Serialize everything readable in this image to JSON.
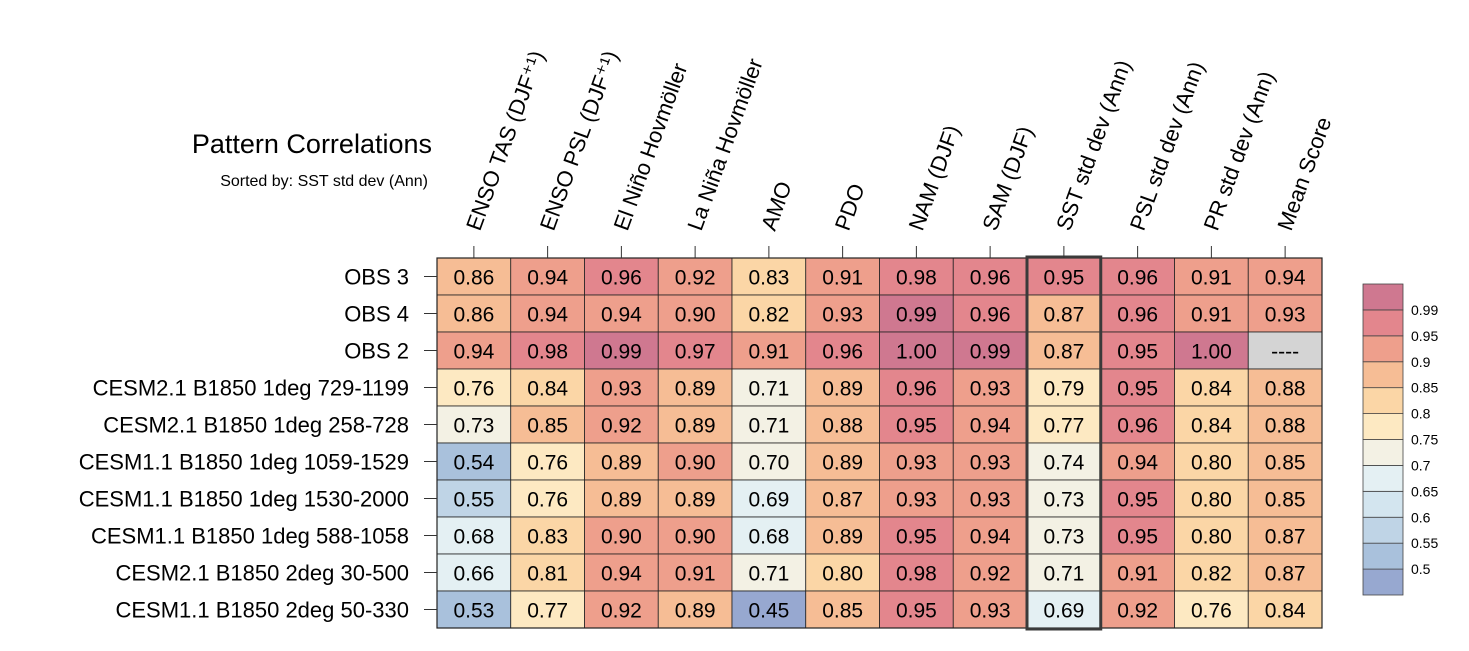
{
  "header": {
    "title": "Pattern Correlations",
    "subtitle": "Sorted by: SST std dev (Ann)"
  },
  "chart_data": {
    "type": "heatmap",
    "title": "Pattern Correlations",
    "subtitle": "Sorted by: SST std dev (Ann)",
    "sorted_by": "SST std dev (Ann)",
    "columns": [
      "ENSO TAS (DJF⁺¹)",
      "ENSO PSL (DJF⁺¹)",
      "El Niño Hovmöller",
      "La Niña Hovmöller",
      "AMO",
      "PDO",
      "NAM (DJF)",
      "SAM (DJF)",
      "SST std dev (Ann)",
      "PSL std dev (Ann)",
      "PR std dev (Ann)",
      "Mean Score"
    ],
    "rows": [
      "OBS 3",
      "OBS 4",
      "OBS 2",
      "CESM2.1 B1850 1deg 729-1199",
      "CESM2.1 B1850 1deg 258-728",
      "CESM1.1 B1850 1deg 1059-1529",
      "CESM1.1 B1850 1deg 1530-2000",
      "CESM1.1 B1850 1deg 588-1058",
      "CESM2.1 B1850 2deg 30-500",
      "CESM1.1 B1850 2deg 50-330"
    ],
    "values": [
      [
        "0.86",
        "0.94",
        "0.96",
        "0.92",
        "0.83",
        "0.91",
        "0.98",
        "0.96",
        "0.95",
        "0.96",
        "0.91",
        "0.94"
      ],
      [
        "0.86",
        "0.94",
        "0.94",
        "0.90",
        "0.82",
        "0.93",
        "0.99",
        "0.96",
        "0.87",
        "0.96",
        "0.91",
        "0.93"
      ],
      [
        "0.94",
        "0.98",
        "0.99",
        "0.97",
        "0.91",
        "0.96",
        "1.00",
        "0.99",
        "0.87",
        "0.95",
        "1.00",
        "----"
      ],
      [
        "0.76",
        "0.84",
        "0.93",
        "0.89",
        "0.71",
        "0.89",
        "0.96",
        "0.93",
        "0.79",
        "0.95",
        "0.84",
        "0.88"
      ],
      [
        "0.73",
        "0.85",
        "0.92",
        "0.89",
        "0.71",
        "0.88",
        "0.95",
        "0.94",
        "0.77",
        "0.96",
        "0.84",
        "0.88"
      ],
      [
        "0.54",
        "0.76",
        "0.89",
        "0.90",
        "0.70",
        "0.89",
        "0.93",
        "0.93",
        "0.74",
        "0.94",
        "0.80",
        "0.85"
      ],
      [
        "0.55",
        "0.76",
        "0.89",
        "0.89",
        "0.69",
        "0.87",
        "0.93",
        "0.93",
        "0.73",
        "0.95",
        "0.80",
        "0.85"
      ],
      [
        "0.68",
        "0.83",
        "0.90",
        "0.90",
        "0.68",
        "0.89",
        "0.95",
        "0.94",
        "0.73",
        "0.95",
        "0.80",
        "0.87"
      ],
      [
        "0.66",
        "0.81",
        "0.94",
        "0.91",
        "0.71",
        "0.80",
        "0.98",
        "0.92",
        "0.71",
        "0.91",
        "0.82",
        "0.87"
      ],
      [
        "0.53",
        "0.77",
        "0.92",
        "0.89",
        "0.45",
        "0.85",
        "0.95",
        "0.93",
        "0.69",
        "0.92",
        "0.76",
        "0.84"
      ]
    ],
    "highlight_column": "SST std dev (Ann)",
    "missing_color": "#d4d4d4",
    "colorbar": {
      "levels": [
        0.5,
        0.55,
        0.6,
        0.65,
        0.7,
        0.75,
        0.8,
        0.85,
        0.9,
        0.95,
        0.99
      ],
      "labels": [
        "0.5",
        "0.55",
        "0.6",
        "0.65",
        "0.7",
        "0.75",
        "0.8",
        "0.85",
        "0.9",
        "0.95",
        "0.99"
      ],
      "colors": [
        "#97a8d0",
        "#a9c1dc",
        "#bfd4e6",
        "#d3e5ef",
        "#e4f0f3",
        "#f3f1e4",
        "#fde9c2",
        "#fbd6a6",
        "#f6bd95",
        "#ee9f8c",
        "#e3868d",
        "#cf7890"
      ]
    }
  }
}
